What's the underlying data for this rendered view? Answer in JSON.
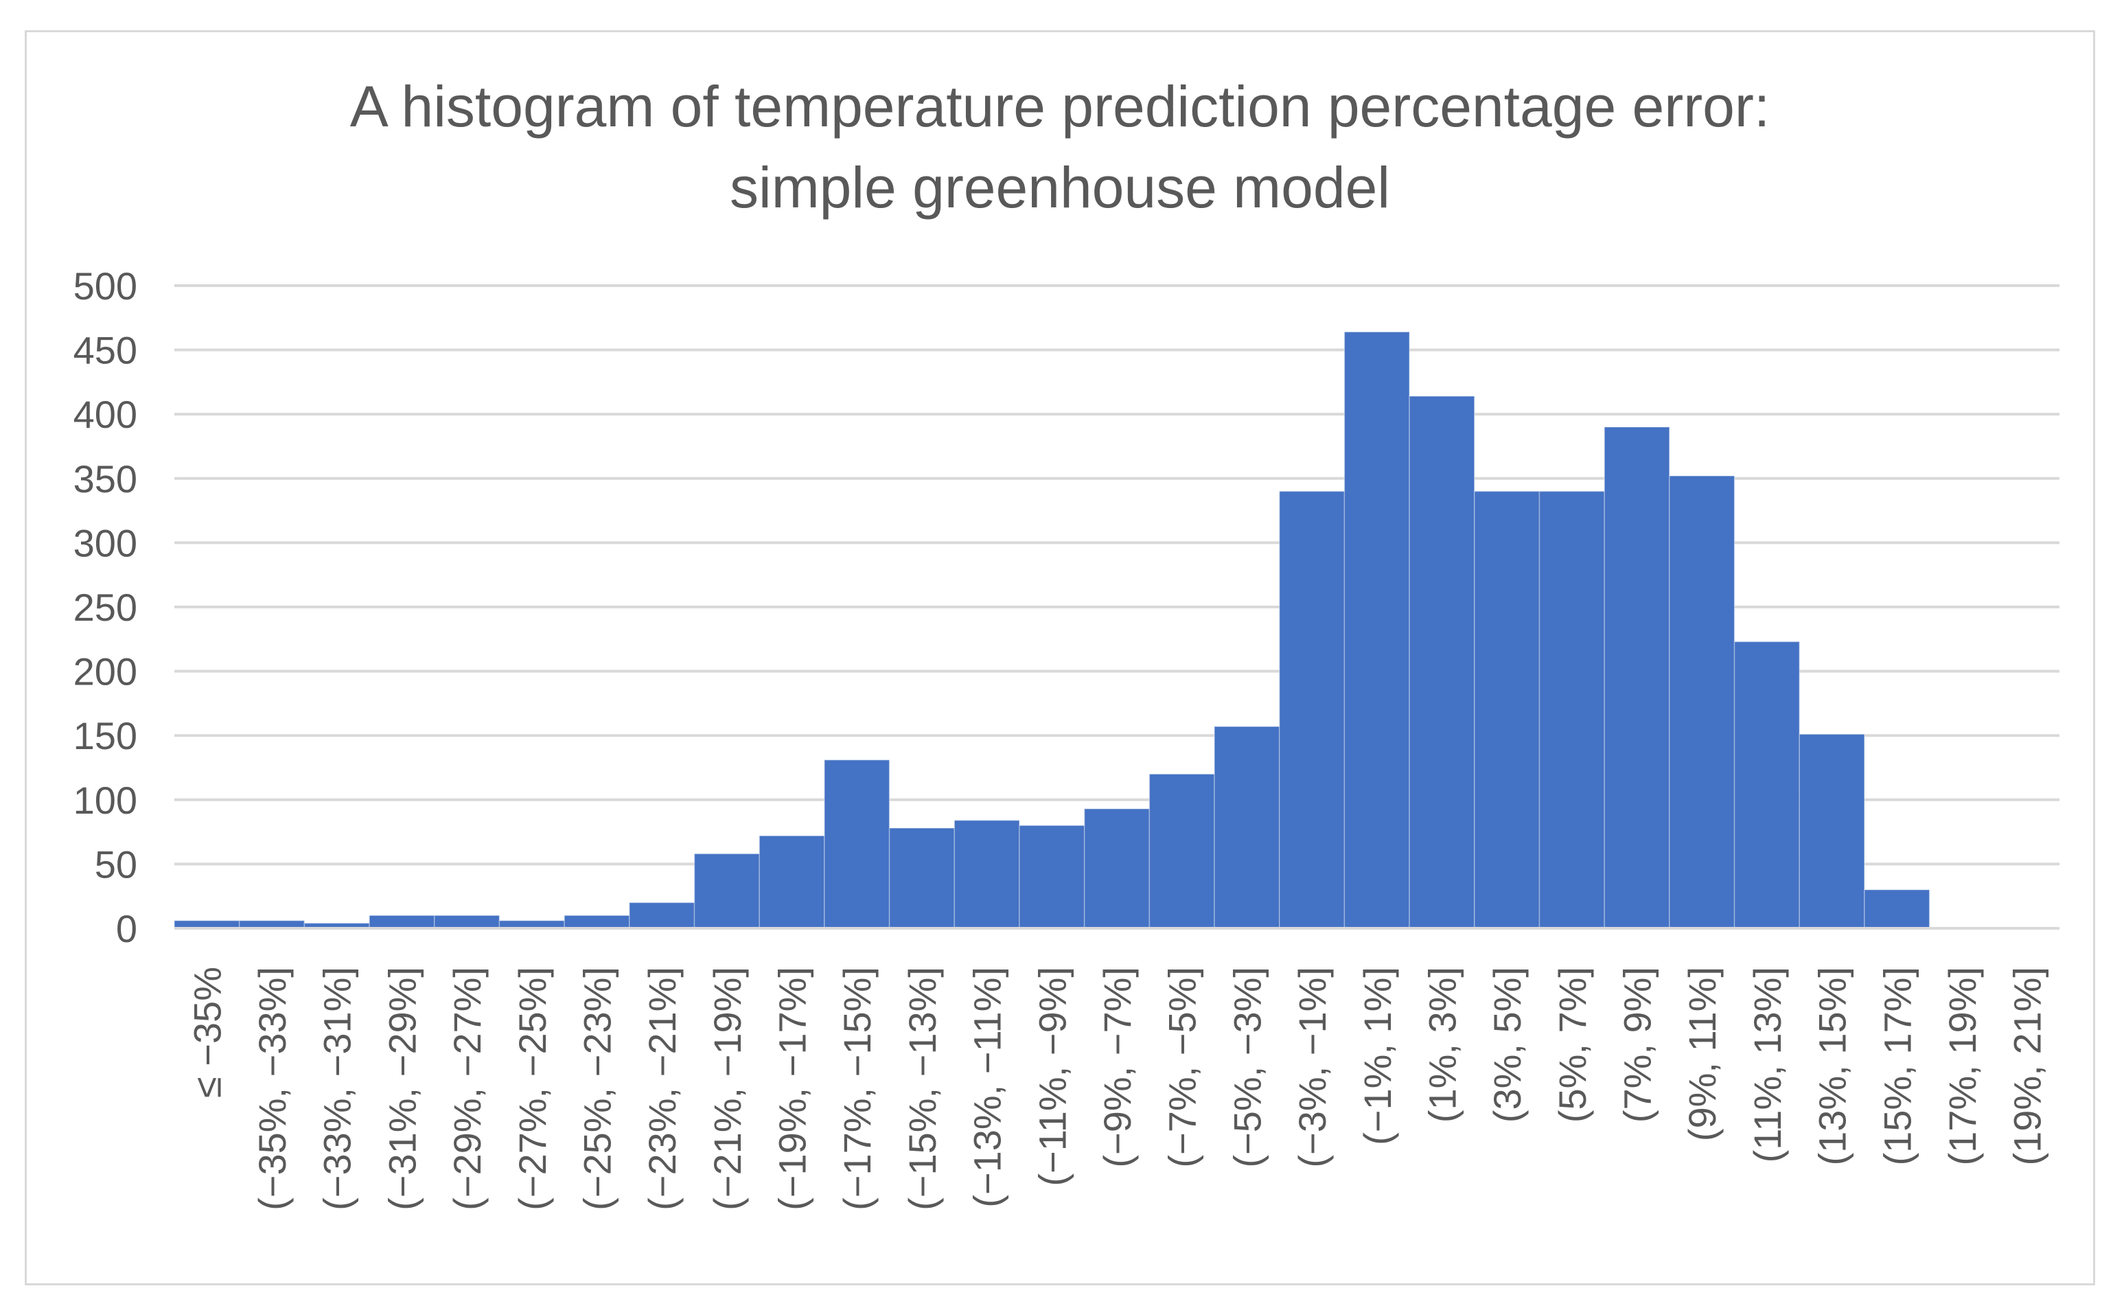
{
  "chart_data": {
    "type": "bar",
    "title": "A histogram of temperature prediction percentage error: simple greenhouse model",
    "title_lines": [
      "A histogram of temperature prediction percentage error:",
      "simple greenhouse model"
    ],
    "xlabel": "",
    "ylabel": "",
    "ylim": [
      0,
      500
    ],
    "yticks": [
      0,
      50,
      100,
      150,
      200,
      250,
      300,
      350,
      400,
      450,
      500
    ],
    "grid": true,
    "legend": "none",
    "bar_color": "#4472c4",
    "categories": [
      "≤ −35%",
      "(−35%, −33%]",
      "(−33%, −31%]",
      "(−31%, −29%]",
      "(−29%, −27%]",
      "(−27%, −25%]",
      "(−25%, −23%]",
      "(−23%, −21%]",
      "(−21%, −19%]",
      "(−19%, −17%]",
      "(−17%, −15%]",
      "(−15%, −13%]",
      "(−13%, −11%]",
      "(−11%, −9%]",
      "(−9%, −7%]",
      "(−7%, −5%]",
      "(−5%, −3%]",
      "(−3%, −1%]",
      "(−1%, 1%]",
      "(1%, 3%]",
      "(3%, 5%]",
      "(5%, 7%]",
      "(7%, 9%]",
      "(9%, 11%]",
      "(11%, 13%]",
      "(13%, 15%]",
      "(15%, 17%]",
      "(17%, 19%]",
      "(19%, 21%]"
    ],
    "values": [
      6,
      6,
      4,
      10,
      10,
      6,
      10,
      20,
      58,
      72,
      131,
      78,
      84,
      80,
      93,
      120,
      157,
      340,
      464,
      414,
      340,
      340,
      390,
      352,
      223,
      151,
      30,
      0,
      0
    ]
  }
}
